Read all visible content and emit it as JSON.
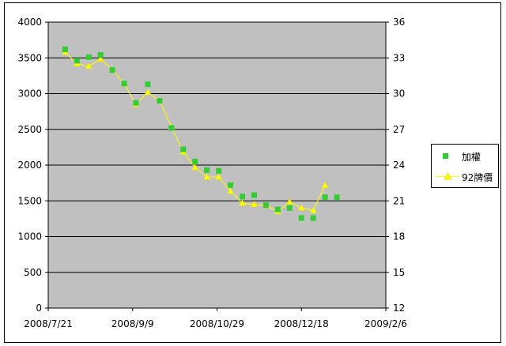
{
  "colors": {
    "plot_bg": "#C0C0C0",
    "grid": "#000000",
    "weighted": "#33CC33",
    "stock": "#FFFF00",
    "stock_marker": "#E6E600"
  },
  "chart_data": {
    "type": "scatter",
    "x_ticks": [
      "2008/7/21",
      "2008/9/9",
      "2008/10/29",
      "2008/12/18",
      "2009/2/6"
    ],
    "xlim": [
      "2008/7/21",
      "2009/2/6"
    ],
    "y_left": {
      "ylim": [
        0,
        4000
      ],
      "ticks": [
        "0",
        "500",
        "1000",
        "1500",
        "2000",
        "2500",
        "3000",
        "3500",
        "4000"
      ]
    },
    "y_right": {
      "ylim": [
        12,
        36
      ],
      "ticks": [
        "12",
        "15",
        "18",
        "21",
        "24",
        "27",
        "30",
        "33",
        "36"
      ]
    },
    "grid": true,
    "legend_position": "right",
    "series": [
      {
        "name": "加權",
        "axis": "left",
        "style": "markers",
        "x": [
          "2008/7/31",
          "2008/8/7",
          "2008/8/14",
          "2008/8/21",
          "2008/8/28",
          "2008/9/4",
          "2008/9/11",
          "2008/9/18",
          "2008/9/25",
          "2008/10/2",
          "2008/10/9",
          "2008/10/16",
          "2008/10/23",
          "2008/10/30",
          "2008/11/6",
          "2008/11/13",
          "2008/11/20",
          "2008/11/27",
          "2008/12/4",
          "2008/12/11",
          "2008/12/18",
          "2008/12/25",
          "2009/1/1",
          "2009/1/8"
        ],
        "values": [
          3620,
          3460,
          3510,
          3540,
          3330,
          3140,
          2870,
          3130,
          2900,
          2520,
          2220,
          2050,
          1930,
          1920,
          1720,
          1560,
          1580,
          1440,
          1380,
          1400,
          1260,
          1260,
          1550,
          1550
        ]
      },
      {
        "name": "92牌價",
        "axis": "right",
        "style": "line-markers",
        "x": [
          "2008/7/31",
          "2008/8/7",
          "2008/8/14",
          "2008/8/21",
          "2008/8/28",
          "2008/9/4",
          "2008/9/11",
          "2008/9/18",
          "2008/9/25",
          "2008/10/2",
          "2008/10/9",
          "2008/10/16",
          "2008/10/23",
          "2008/10/30",
          "2008/11/6",
          "2008/11/13",
          "2008/11/20",
          "2008/11/27",
          "2008/12/4",
          "2008/12/11",
          "2008/12/18",
          "2008/12/25",
          "2009/1/1"
        ],
        "values": [
          33.5,
          32.5,
          32.3,
          32.9,
          32.0,
          30.8,
          29.1,
          30.1,
          29.4,
          27.2,
          25.1,
          23.8,
          23.0,
          23.0,
          21.8,
          20.8,
          20.7,
          20.6,
          20.1,
          20.9,
          20.4,
          20.2,
          22.3
        ]
      }
    ]
  }
}
